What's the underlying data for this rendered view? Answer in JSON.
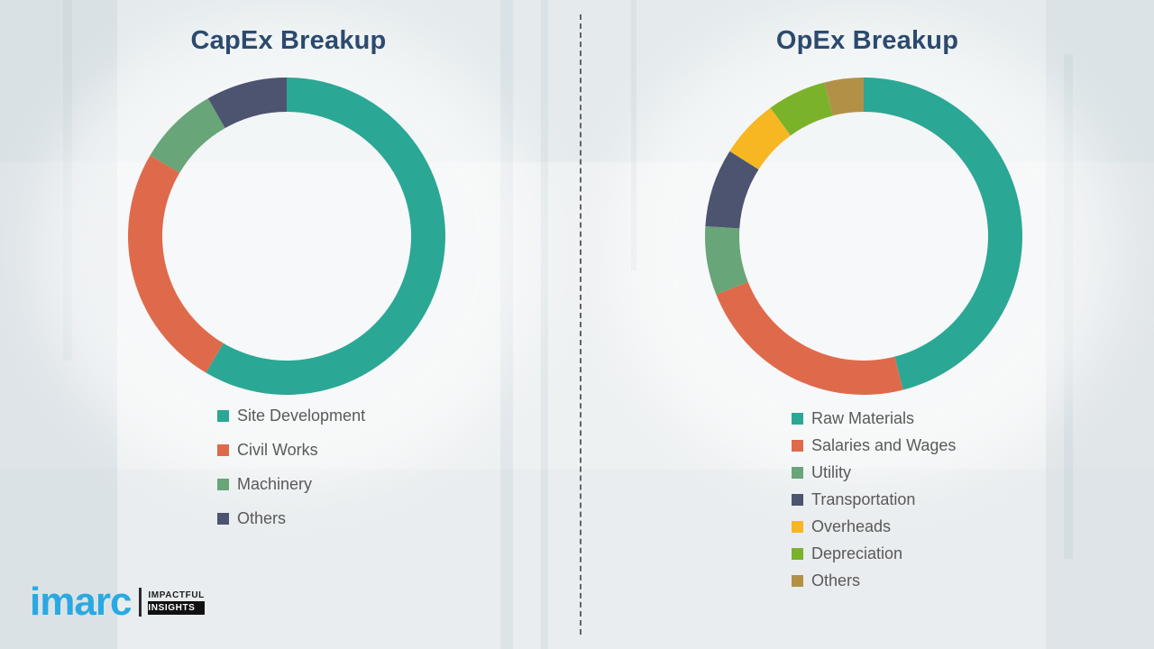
{
  "chart_data": [
    {
      "type": "pie",
      "style": "donut",
      "title": "CapEx Breakup",
      "labels": [
        "Site Development",
        "Civil Works",
        "Machinery",
        "Others"
      ],
      "values": [
        58.5,
        25,
        8.25,
        8.25
      ],
      "colors": [
        "#2ba795",
        "#df6a4b",
        "#68a578",
        "#4d5470"
      ],
      "donut_hole_ratio": 0.785,
      "legend_position": "bottom-left",
      "start_angle_deg": 0,
      "direction": "clockwise"
    },
    {
      "type": "pie",
      "style": "donut",
      "title": "OpEx Breakup",
      "labels": [
        "Raw Materials",
        "Salaries and Wages",
        "Utility",
        "Transportation",
        "Overheads",
        "Depreciation",
        "Others"
      ],
      "values": [
        46,
        23,
        7,
        8,
        6,
        6,
        4
      ],
      "colors": [
        "#2ba795",
        "#df6a4b",
        "#68a578",
        "#4d5470",
        "#f6b723",
        "#7ab32a",
        "#b29147"
      ],
      "donut_hole_ratio": 0.785,
      "legend_position": "bottom-left",
      "start_angle_deg": 0,
      "direction": "clockwise"
    }
  ],
  "logo": {
    "brand": "imarc",
    "tagline_line1": "IMPACTFUL",
    "tagline_line2": "INSIGHTS"
  },
  "theme": {
    "title_color": "#2c4a6e",
    "legend_text_color": "#595959",
    "background_color": "#eef1f2",
    "divider_color": "#636363",
    "brand_blue": "#29a9e1"
  }
}
